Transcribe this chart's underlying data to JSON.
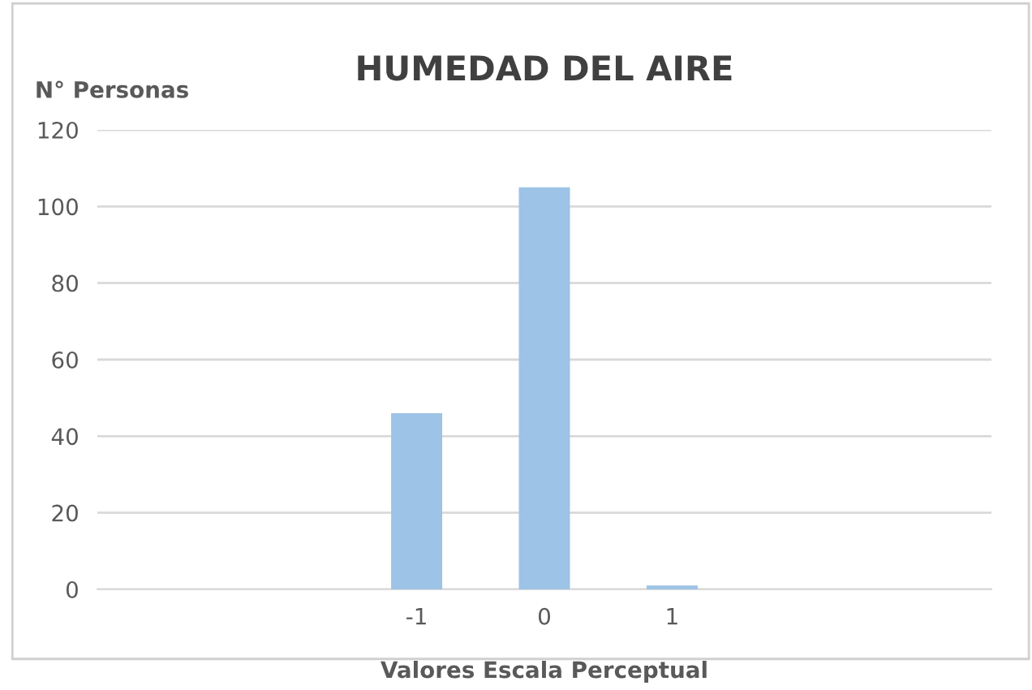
{
  "chart_data": {
    "type": "bar",
    "title": "HUMEDAD DEL AIRE",
    "ylabel": "N° Personas",
    "xlabel": "Valores Escala Perceptual",
    "categories": [
      null,
      null,
      "-1",
      "0",
      "1",
      null,
      null
    ],
    "values": [
      null,
      null,
      46,
      105,
      1,
      null,
      null
    ],
    "color": "#9dc3e6",
    "ylim": [
      0,
      120
    ],
    "yticks": [
      0,
      20,
      40,
      60,
      80,
      100,
      120
    ],
    "grid": "y"
  }
}
